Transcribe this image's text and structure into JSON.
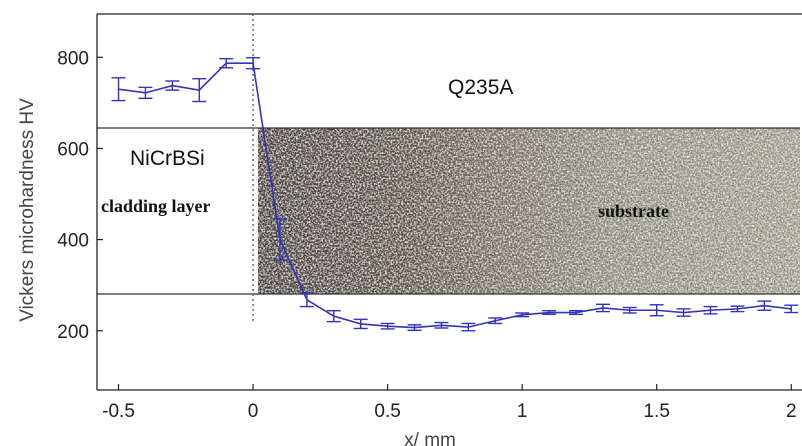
{
  "chart_data": {
    "type": "line",
    "title": "",
    "xlabel": "x/ mm",
    "ylabel": "Vickers microhardness HV",
    "xlim": [
      -0.58,
      2.04
    ],
    "ylim": [
      70,
      895
    ],
    "xticks": [
      -0.5,
      0,
      0.5,
      1,
      1.5,
      2
    ],
    "xtick_labels": [
      "-0.5",
      "0",
      "0.5",
      "1",
      "1.5",
      "2"
    ],
    "yticks": [
      200,
      400,
      600,
      800
    ],
    "ytick_labels": [
      "200",
      "400",
      "600",
      "800"
    ],
    "grid": false,
    "legend": "none",
    "series_color": "#3333bb",
    "interface_x": 0,
    "series": [
      {
        "x": [
          -0.5,
          -0.4,
          -0.3,
          -0.2,
          -0.1,
          0.0,
          0.1,
          0.2,
          0.3,
          0.4,
          0.5,
          0.6,
          0.7,
          0.8,
          0.9,
          1.0,
          1.1,
          1.2,
          1.3,
          1.4,
          1.5,
          1.6,
          1.7,
          1.8,
          1.9,
          2.0
        ],
        "y": [
          730,
          722,
          738,
          728,
          787,
          787,
          400,
          268,
          232,
          215,
          210,
          207,
          212,
          208,
          222,
          235,
          240,
          240,
          250,
          245,
          245,
          240,
          245,
          248,
          255,
          248
        ],
        "err": [
          25,
          12,
          10,
          25,
          10,
          12,
          45,
          15,
          12,
          10,
          6,
          6,
          6,
          8,
          6,
          4,
          4,
          4,
          8,
          6,
          12,
          8,
          8,
          6,
          10,
          8
        ]
      }
    ],
    "annotations": {
      "top_label": "Q235A",
      "material_label": "NiCrBSi",
      "cladding_label": "cladding layer",
      "substrate_label": "substrate"
    }
  }
}
